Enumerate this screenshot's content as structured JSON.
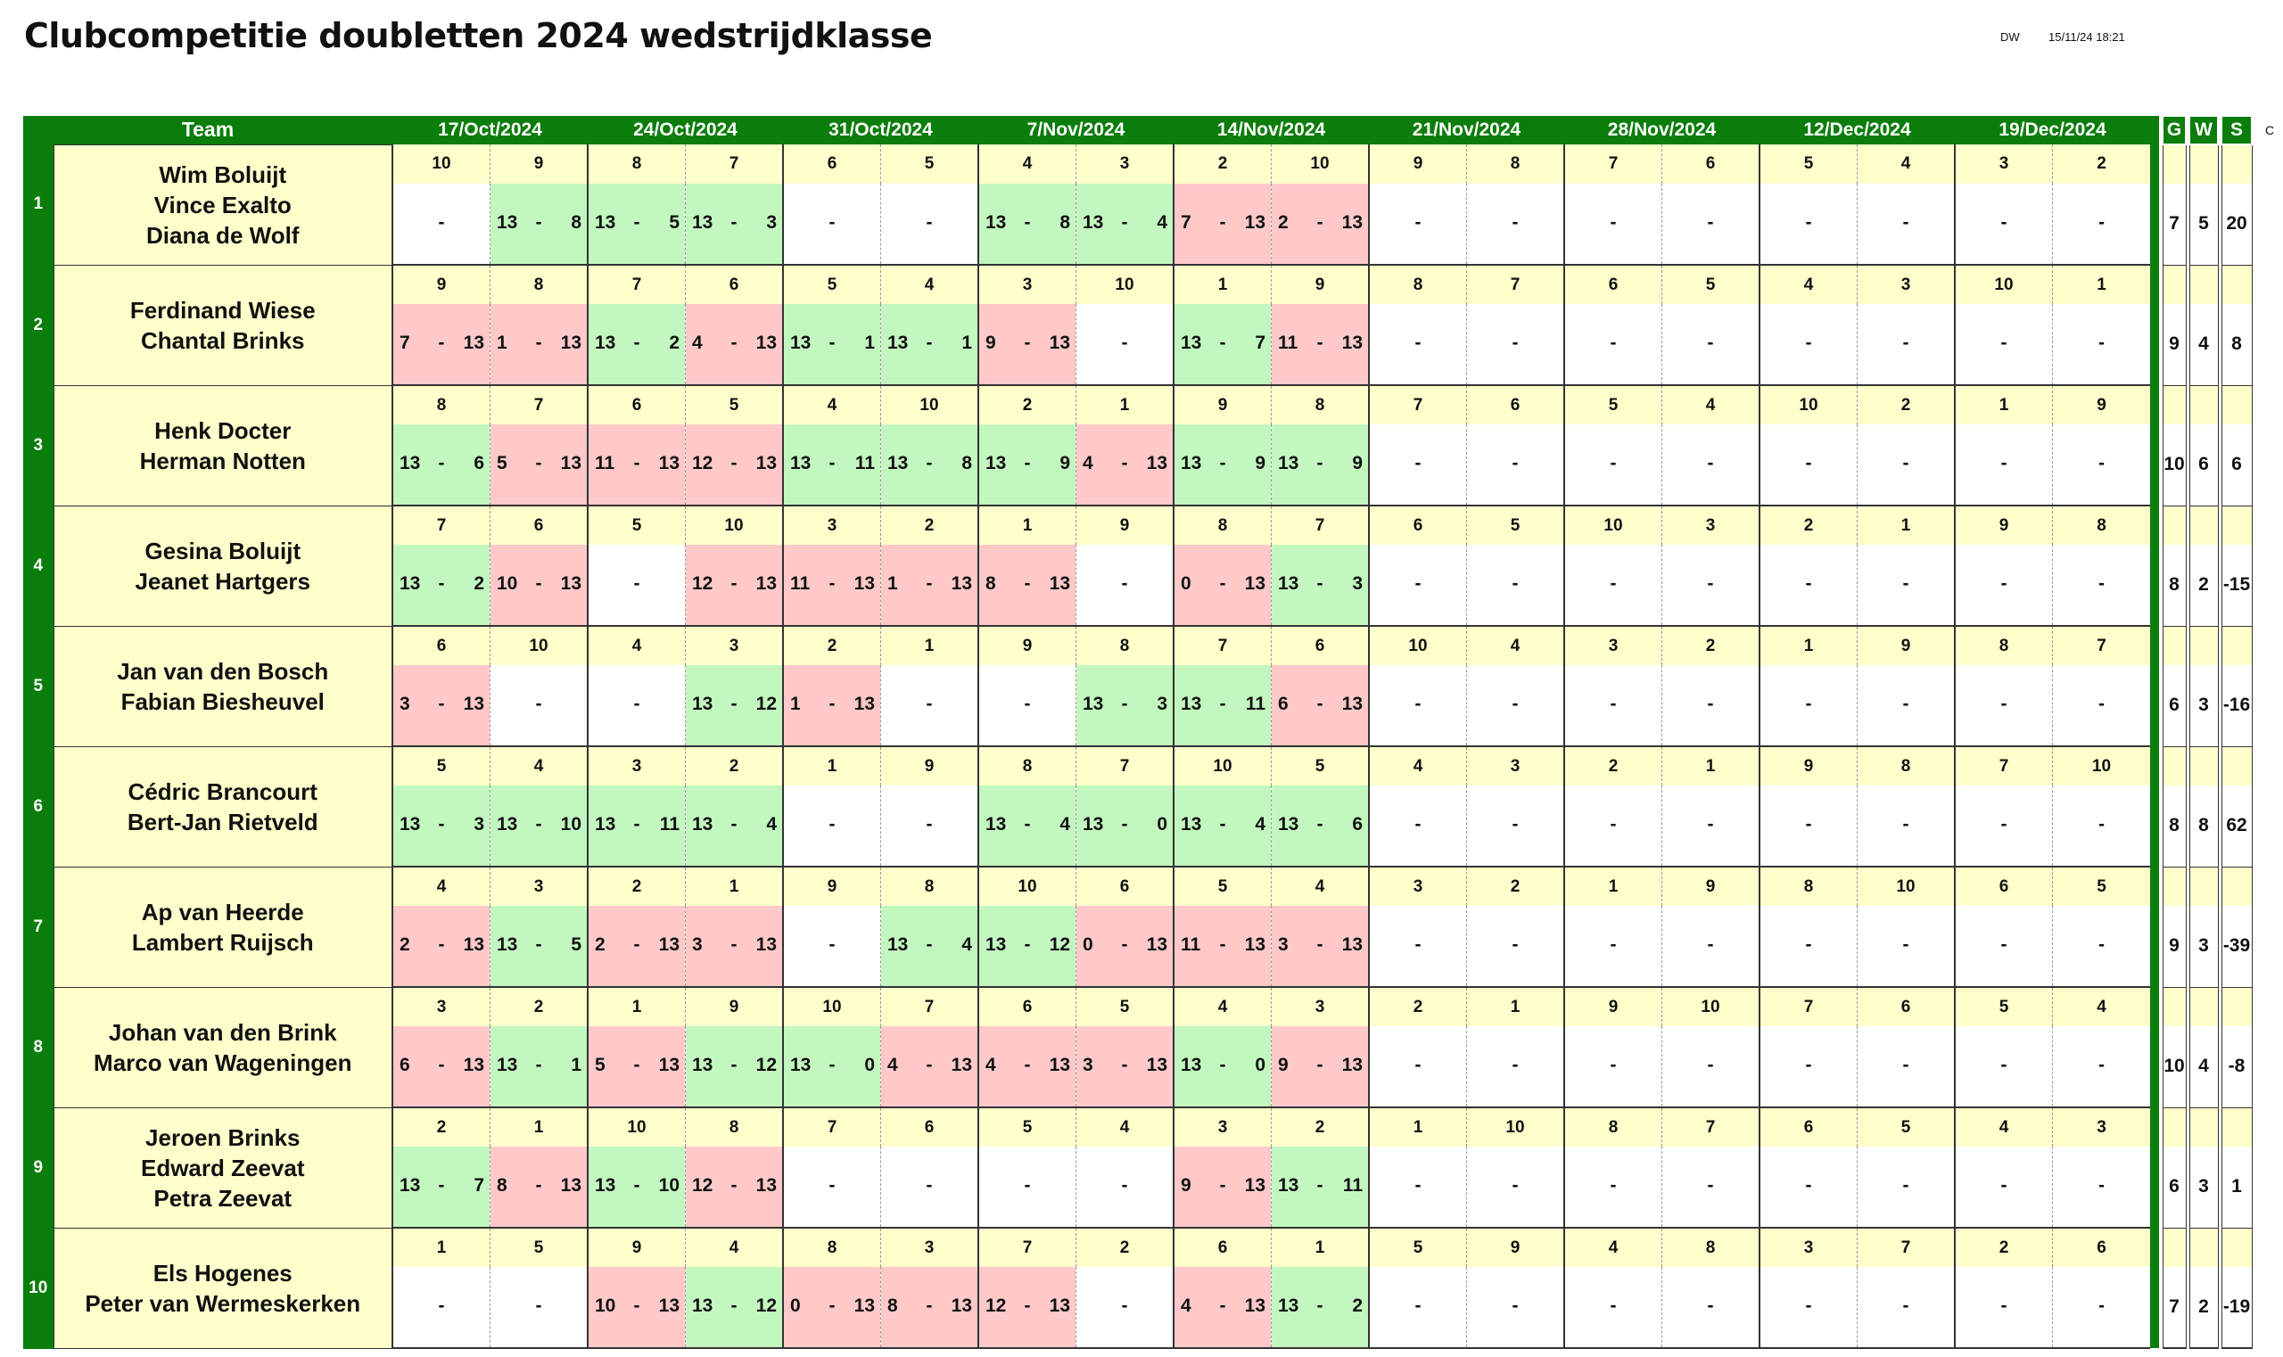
{
  "title": "Clubcompetitie doubletten 2024 wedstrijdklasse",
  "meta": {
    "initials": "DW",
    "timestamp": "15/11/24 18:21",
    "edge_char": "C"
  },
  "header": {
    "team": "Team",
    "dates": [
      "17/Oct/2024",
      "24/Oct/2024",
      "31/Oct/2024",
      "7/Nov/2024",
      "14/Nov/2024",
      "21/Nov/2024",
      "28/Nov/2024",
      "12/Dec/2024",
      "19/Dec/2024"
    ],
    "stats": [
      "G",
      "W",
      "S"
    ]
  },
  "teams": [
    {
      "num": "1",
      "players": [
        "Wim  Boluijt",
        "Vince  Exalto",
        "Diana de Wolf"
      ],
      "opponents": [
        "10",
        "9",
        "8",
        "7",
        "6",
        "5",
        "4",
        "3",
        "2",
        "10",
        "9",
        "8",
        "7",
        "6",
        "5",
        "4",
        "3",
        "2"
      ],
      "scores": [
        [
          "-",
          "",
          ""
        ],
        [
          "13",
          "-",
          "8"
        ],
        [
          "13",
          "-",
          "5"
        ],
        [
          "13",
          "-",
          "3"
        ],
        [
          "-",
          "",
          ""
        ],
        [
          "-",
          "",
          ""
        ],
        [
          "13",
          "-",
          "8"
        ],
        [
          "13",
          "-",
          "4"
        ],
        [
          "7",
          "-",
          "13"
        ],
        [
          "2",
          "-",
          "13"
        ],
        [
          "-",
          "",
          ""
        ],
        [
          "-",
          "",
          ""
        ],
        [
          "-",
          "",
          ""
        ],
        [
          "-",
          "",
          ""
        ],
        [
          "-",
          "",
          ""
        ],
        [
          "-",
          "",
          ""
        ],
        [
          "-",
          "",
          ""
        ],
        [
          "-",
          "",
          ""
        ]
      ],
      "stats": [
        "7",
        "5",
        "20"
      ]
    },
    {
      "num": "2",
      "players": [
        "Ferdinand Wiese",
        "Chantal Brinks"
      ],
      "opponents": [
        "9",
        "8",
        "7",
        "6",
        "5",
        "4",
        "3",
        "10",
        "1",
        "9",
        "8",
        "7",
        "6",
        "5",
        "4",
        "3",
        "10",
        "1"
      ],
      "scores": [
        [
          "7",
          "-",
          "13"
        ],
        [
          "1",
          "-",
          "13"
        ],
        [
          "13",
          "-",
          "2"
        ],
        [
          "4",
          "-",
          "13"
        ],
        [
          "13",
          "-",
          "1"
        ],
        [
          "13",
          "-",
          "1"
        ],
        [
          "9",
          "-",
          "13"
        ],
        [
          "-",
          "",
          ""
        ],
        [
          "13",
          "-",
          "7"
        ],
        [
          "11",
          "-",
          "13"
        ],
        [
          "-",
          "",
          ""
        ],
        [
          "-",
          "",
          ""
        ],
        [
          "-",
          "",
          ""
        ],
        [
          "-",
          "",
          ""
        ],
        [
          "-",
          "",
          ""
        ],
        [
          "-",
          "",
          ""
        ],
        [
          "-",
          "",
          ""
        ],
        [
          "-",
          "",
          ""
        ]
      ],
      "stats": [
        "9",
        "4",
        "8"
      ]
    },
    {
      "num": "3",
      "players": [
        "Henk  Docter",
        "Herman Notten"
      ],
      "opponents": [
        "8",
        "7",
        "6",
        "5",
        "4",
        "10",
        "2",
        "1",
        "9",
        "8",
        "7",
        "6",
        "5",
        "4",
        "10",
        "2",
        "1",
        "9"
      ],
      "scores": [
        [
          "13",
          "-",
          "6"
        ],
        [
          "5",
          "-",
          "13"
        ],
        [
          "11",
          "-",
          "13"
        ],
        [
          "12",
          "-",
          "13"
        ],
        [
          "13",
          "-",
          "11"
        ],
        [
          "13",
          "-",
          "8"
        ],
        [
          "13",
          "-",
          "9"
        ],
        [
          "4",
          "-",
          "13"
        ],
        [
          "13",
          "-",
          "9"
        ],
        [
          "13",
          "-",
          "9"
        ],
        [
          "-",
          "",
          ""
        ],
        [
          "-",
          "",
          ""
        ],
        [
          "-",
          "",
          ""
        ],
        [
          "-",
          "",
          ""
        ],
        [
          "-",
          "",
          ""
        ],
        [
          "-",
          "",
          ""
        ],
        [
          "-",
          "",
          ""
        ],
        [
          "-",
          "",
          ""
        ]
      ],
      "stats": [
        "10",
        "6",
        "6"
      ]
    },
    {
      "num": "4",
      "players": [
        "Gesina Boluijt",
        "Jeanet  Hartgers"
      ],
      "opponents": [
        "7",
        "6",
        "5",
        "10",
        "3",
        "2",
        "1",
        "9",
        "8",
        "7",
        "6",
        "5",
        "10",
        "3",
        "2",
        "1",
        "9",
        "8"
      ],
      "scores": [
        [
          "13",
          "-",
          "2"
        ],
        [
          "10",
          "-",
          "13"
        ],
        [
          "-",
          "",
          ""
        ],
        [
          "12",
          "-",
          "13"
        ],
        [
          "11",
          "-",
          "13"
        ],
        [
          "1",
          "-",
          "13"
        ],
        [
          "8",
          "-",
          "13"
        ],
        [
          "-",
          "",
          ""
        ],
        [
          "0",
          "-",
          "13"
        ],
        [
          "13",
          "-",
          "3"
        ],
        [
          "-",
          "",
          ""
        ],
        [
          "-",
          "",
          ""
        ],
        [
          "-",
          "",
          ""
        ],
        [
          "-",
          "",
          ""
        ],
        [
          "-",
          "",
          ""
        ],
        [
          "-",
          "",
          ""
        ],
        [
          "-",
          "",
          ""
        ],
        [
          "-",
          "",
          ""
        ]
      ],
      "stats": [
        "8",
        "2",
        "-15"
      ]
    },
    {
      "num": "5",
      "players": [
        "Jan van den Bosch",
        "Fabian  Biesheuvel"
      ],
      "opponents": [
        "6",
        "10",
        "4",
        "3",
        "2",
        "1",
        "9",
        "8",
        "7",
        "6",
        "10",
        "4",
        "3",
        "2",
        "1",
        "9",
        "8",
        "7"
      ],
      "scores": [
        [
          "3",
          "-",
          "13"
        ],
        [
          "-",
          "",
          ""
        ],
        [
          "-",
          "",
          ""
        ],
        [
          "13",
          "-",
          "12"
        ],
        [
          "1",
          "-",
          "13"
        ],
        [
          "-",
          "",
          ""
        ],
        [
          "-",
          "",
          ""
        ],
        [
          "13",
          "-",
          "3"
        ],
        [
          "13",
          "-",
          "11"
        ],
        [
          "6",
          "-",
          "13"
        ],
        [
          "-",
          "",
          ""
        ],
        [
          "-",
          "",
          ""
        ],
        [
          "-",
          "",
          ""
        ],
        [
          "-",
          "",
          ""
        ],
        [
          "-",
          "",
          ""
        ],
        [
          "-",
          "",
          ""
        ],
        [
          "-",
          "",
          ""
        ],
        [
          "-",
          "",
          ""
        ]
      ],
      "stats": [
        "6",
        "3",
        "-16"
      ]
    },
    {
      "num": "6",
      "players": [
        "Cédric Brancourt",
        "Bert-Jan Rietveld"
      ],
      "opponents": [
        "5",
        "4",
        "3",
        "2",
        "1",
        "9",
        "8",
        "7",
        "10",
        "5",
        "4",
        "3",
        "2",
        "1",
        "9",
        "8",
        "7",
        "10"
      ],
      "scores": [
        [
          "13",
          "-",
          "3"
        ],
        [
          "13",
          "-",
          "10"
        ],
        [
          "13",
          "-",
          "11"
        ],
        [
          "13",
          "-",
          "4"
        ],
        [
          "-",
          "",
          ""
        ],
        [
          "-",
          "",
          ""
        ],
        [
          "13",
          "-",
          "4"
        ],
        [
          "13",
          "-",
          "0"
        ],
        [
          "13",
          "-",
          "4"
        ],
        [
          "13",
          "-",
          "6"
        ],
        [
          "-",
          "",
          ""
        ],
        [
          "-",
          "",
          ""
        ],
        [
          "-",
          "",
          ""
        ],
        [
          "-",
          "",
          ""
        ],
        [
          "-",
          "",
          ""
        ],
        [
          "-",
          "",
          ""
        ],
        [
          "-",
          "",
          ""
        ],
        [
          "-",
          "",
          ""
        ]
      ],
      "stats": [
        "8",
        "8",
        "62"
      ]
    },
    {
      "num": "7",
      "players": [
        "Ap van Heerde",
        "Lambert Ruijsch"
      ],
      "opponents": [
        "4",
        "3",
        "2",
        "1",
        "9",
        "8",
        "10",
        "6",
        "5",
        "4",
        "3",
        "2",
        "1",
        "9",
        "8",
        "10",
        "6",
        "5"
      ],
      "scores": [
        [
          "2",
          "-",
          "13"
        ],
        [
          "13",
          "-",
          "5"
        ],
        [
          "2",
          "-",
          "13"
        ],
        [
          "3",
          "-",
          "13"
        ],
        [
          "-",
          "",
          ""
        ],
        [
          "13",
          "-",
          "4"
        ],
        [
          "13",
          "-",
          "12"
        ],
        [
          "0",
          "-",
          "13"
        ],
        [
          "11",
          "-",
          "13"
        ],
        [
          "3",
          "-",
          "13"
        ],
        [
          "-",
          "",
          ""
        ],
        [
          "-",
          "",
          ""
        ],
        [
          "-",
          "",
          ""
        ],
        [
          "-",
          "",
          ""
        ],
        [
          "-",
          "",
          ""
        ],
        [
          "-",
          "",
          ""
        ],
        [
          "-",
          "",
          ""
        ],
        [
          "-",
          "",
          ""
        ]
      ],
      "stats": [
        "9",
        "3",
        "-39"
      ]
    },
    {
      "num": "8",
      "players": [
        "Johan van den Brink",
        "Marco van Wageningen"
      ],
      "opponents": [
        "3",
        "2",
        "1",
        "9",
        "10",
        "7",
        "6",
        "5",
        "4",
        "3",
        "2",
        "1",
        "9",
        "10",
        "7",
        "6",
        "5",
        "4"
      ],
      "scores": [
        [
          "6",
          "-",
          "13"
        ],
        [
          "13",
          "-",
          "1"
        ],
        [
          "5",
          "-",
          "13"
        ],
        [
          "13",
          "-",
          "12"
        ],
        [
          "13",
          "-",
          "0"
        ],
        [
          "4",
          "-",
          "13"
        ],
        [
          "4",
          "-",
          "13"
        ],
        [
          "3",
          "-",
          "13"
        ],
        [
          "13",
          "-",
          "0"
        ],
        [
          "9",
          "-",
          "13"
        ],
        [
          "-",
          "",
          ""
        ],
        [
          "-",
          "",
          ""
        ],
        [
          "-",
          "",
          ""
        ],
        [
          "-",
          "",
          ""
        ],
        [
          "-",
          "",
          ""
        ],
        [
          "-",
          "",
          ""
        ],
        [
          "-",
          "",
          ""
        ],
        [
          "-",
          "",
          ""
        ]
      ],
      "stats": [
        "10",
        "4",
        "-8"
      ]
    },
    {
      "num": "9",
      "players": [
        "Jeroen Brinks",
        "Edward Zeevat",
        "Petra Zeevat"
      ],
      "opponents": [
        "2",
        "1",
        "10",
        "8",
        "7",
        "6",
        "5",
        "4",
        "3",
        "2",
        "1",
        "10",
        "8",
        "7",
        "6",
        "5",
        "4",
        "3"
      ],
      "scores": [
        [
          "13",
          "-",
          "7"
        ],
        [
          "8",
          "-",
          "13"
        ],
        [
          "13",
          "-",
          "10"
        ],
        [
          "12",
          "-",
          "13"
        ],
        [
          "-",
          "",
          ""
        ],
        [
          "-",
          "",
          ""
        ],
        [
          "-",
          "",
          ""
        ],
        [
          "-",
          "",
          ""
        ],
        [
          "9",
          "-",
          "13"
        ],
        [
          "13",
          "-",
          "11"
        ],
        [
          "-",
          "",
          ""
        ],
        [
          "-",
          "",
          ""
        ],
        [
          "-",
          "",
          ""
        ],
        [
          "-",
          "",
          ""
        ],
        [
          "-",
          "",
          ""
        ],
        [
          "-",
          "",
          ""
        ],
        [
          "-",
          "",
          ""
        ],
        [
          "-",
          "",
          ""
        ]
      ],
      "stats": [
        "6",
        "3",
        "1"
      ]
    },
    {
      "num": "10",
      "players": [
        "Els Hogenes",
        "Peter van Wermeskerken"
      ],
      "opponents": [
        "1",
        "5",
        "9",
        "4",
        "8",
        "3",
        "7",
        "2",
        "6",
        "1",
        "5",
        "9",
        "4",
        "8",
        "3",
        "7",
        "2",
        "6"
      ],
      "scores": [
        [
          "-",
          "",
          ""
        ],
        [
          "-",
          "",
          ""
        ],
        [
          "10",
          "-",
          "13"
        ],
        [
          "13",
          "-",
          "12"
        ],
        [
          "0",
          "-",
          "13"
        ],
        [
          "8",
          "-",
          "13"
        ],
        [
          "12",
          "-",
          "13"
        ],
        [
          "-",
          "",
          ""
        ],
        [
          "4",
          "-",
          "13"
        ],
        [
          "13",
          "-",
          "2"
        ],
        [
          "-",
          "",
          ""
        ],
        [
          "-",
          "",
          ""
        ],
        [
          "-",
          "",
          ""
        ],
        [
          "-",
          "",
          ""
        ],
        [
          "-",
          "",
          ""
        ],
        [
          "-",
          "",
          ""
        ],
        [
          "-",
          "",
          ""
        ],
        [
          "-",
          "",
          ""
        ]
      ],
      "stats": [
        "7",
        "2",
        "-19"
      ]
    }
  ],
  "colors": {
    "header_green": "#0a7d0a",
    "win": "#c3f7c0",
    "loss": "#ffc9c9",
    "pale_yellow": "#ffffcc"
  }
}
